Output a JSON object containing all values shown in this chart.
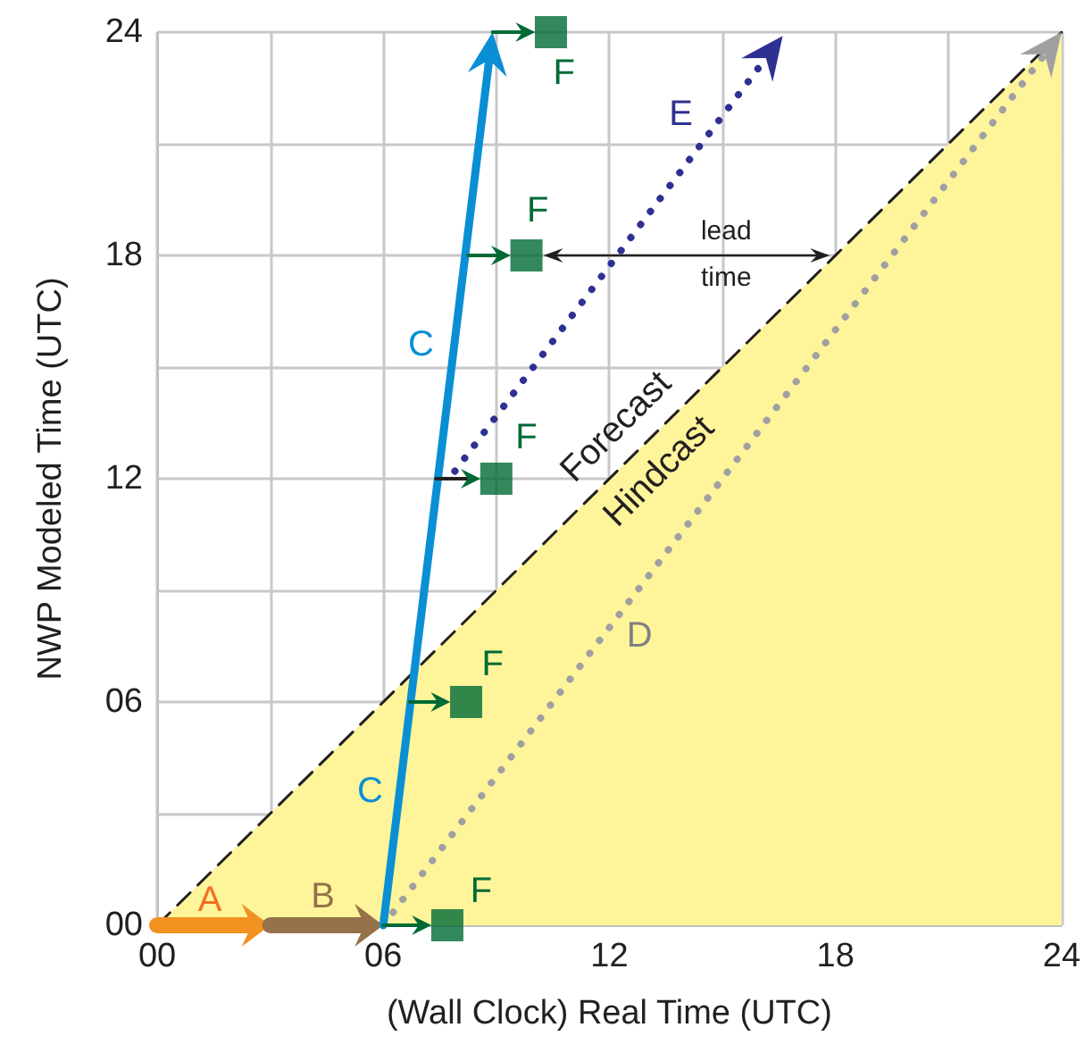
{
  "chart_data": {
    "type": "area",
    "xlabel": "(Wall Clock) Real Time (UTC)",
    "ylabel": "NWP Modeled Time (UTC)",
    "xlim": [
      0,
      24
    ],
    "ylim": [
      0,
      24
    ],
    "xticks": [
      {
        "value": 0,
        "label": "00"
      },
      {
        "value": 3,
        "label": null
      },
      {
        "value": 6,
        "label": "06"
      },
      {
        "value": 9,
        "label": null
      },
      {
        "value": 12,
        "label": "12"
      },
      {
        "value": 15,
        "label": null
      },
      {
        "value": 18,
        "label": "18"
      },
      {
        "value": 21,
        "label": null
      },
      {
        "value": 24,
        "label": "24"
      }
    ],
    "yticks": [
      {
        "value": 0,
        "label": "00"
      },
      {
        "value": 3,
        "label": null
      },
      {
        "value": 6,
        "label": "06"
      },
      {
        "value": 9,
        "label": null
      },
      {
        "value": 12,
        "label": "12"
      },
      {
        "value": 15,
        "label": null
      },
      {
        "value": 18,
        "label": "18"
      },
      {
        "value": 21,
        "label": null
      },
      {
        "value": 24,
        "label": "24"
      }
    ],
    "grid": true,
    "series": [
      {
        "color": "#fef59b",
        "line_style": "dashed",
        "x": [
          0,
          24
        ],
        "values": [
          0,
          24
        ]
      },
      {
        "type": "scatter",
        "color": "#006a35",
        "marker": "square",
        "x": [
          7.7,
          8.2,
          9.0,
          9.8,
          10.45
        ],
        "values": [
          0,
          6,
          12,
          18,
          24
        ]
      }
    ],
    "annotations": [
      "A",
      "B",
      "C",
      "C",
      "D",
      "E",
      "F",
      "F",
      "F",
      "F",
      "F",
      "Forecast",
      "Hindcast",
      "lead time"
    ]
  }
}
